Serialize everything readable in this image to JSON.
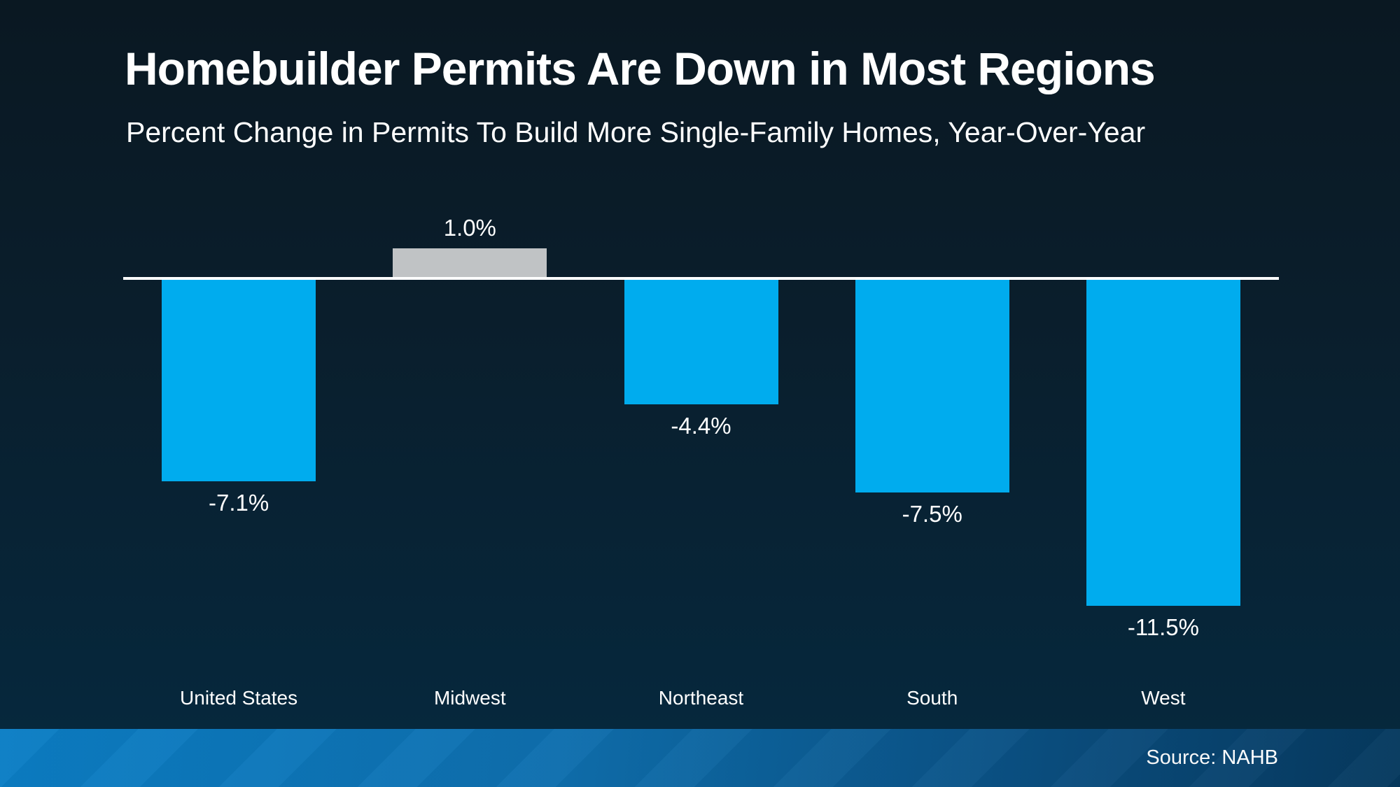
{
  "slide": {
    "title": "Homebuilder Permits Are Down in Most Regions",
    "subtitle": "Percent Change in Permits To Build More Single-Family Homes, Year-Over-Year",
    "source": "Source: NAHB"
  },
  "colors": {
    "bar_negative": "#00ACEE",
    "bar_positive": "#C0C3C5",
    "axis_line": "#FFFFFF",
    "text": "#FFFFFF",
    "background_top": "#0A1822",
    "background_bottom": "#05293F",
    "footer_gradient_left": "#0B7EC5",
    "footer_gradient_right": "#06395E"
  },
  "chart_data": {
    "type": "bar",
    "title": "Homebuilder Permits Are Down in Most Regions",
    "subtitle": "Percent Change in Permits To Build More Single-Family Homes, Year-Over-Year",
    "categories": [
      "United States",
      "Midwest",
      "Northeast",
      "South",
      "West"
    ],
    "values": [
      -7.1,
      1.0,
      -4.4,
      -7.5,
      -11.5
    ],
    "value_labels": [
      "-7.1%",
      "1.0%",
      "-4.4%",
      "-7.5%",
      "-11.5%"
    ],
    "bar_colors": [
      "#00ACEE",
      "#C0C3C5",
      "#00ACEE",
      "#00ACEE",
      "#00ACEE"
    ],
    "xlabel": "",
    "ylabel": "",
    "baseline": 0,
    "ylim": [
      -12.5,
      2.5
    ],
    "grid": false,
    "legend": false,
    "orientation": "vertical",
    "annotations": [
      "Source: NAHB"
    ]
  }
}
